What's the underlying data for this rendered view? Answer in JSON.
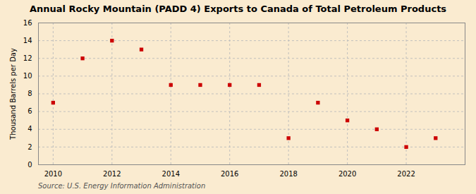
{
  "chart_data": {
    "type": "scatter",
    "title": "Annual Rocky Mountain (PADD 4) Exports to Canada of Total Petroleum Products",
    "ylabel": "Thousand Barrels per Day",
    "source": "Source: U.S. Energy Information Administration",
    "x": [
      2010,
      2011,
      2012,
      2013,
      2014,
      2015,
      2016,
      2017,
      2018,
      2019,
      2020,
      2021,
      2022,
      2023
    ],
    "values": [
      7,
      12,
      14,
      13,
      9,
      9,
      9,
      9,
      3,
      7,
      5,
      4,
      2,
      3
    ],
    "color": "#cc0000",
    "marker": "square",
    "grid": true,
    "xlim": [
      2009.5,
      2024.0
    ],
    "ylim": [
      0,
      16
    ],
    "xticks": [
      2010,
      2012,
      2014,
      2016,
      2018,
      2020,
      2022
    ],
    "yticks": [
      0,
      2,
      4,
      6,
      8,
      10,
      12,
      14,
      16
    ]
  }
}
